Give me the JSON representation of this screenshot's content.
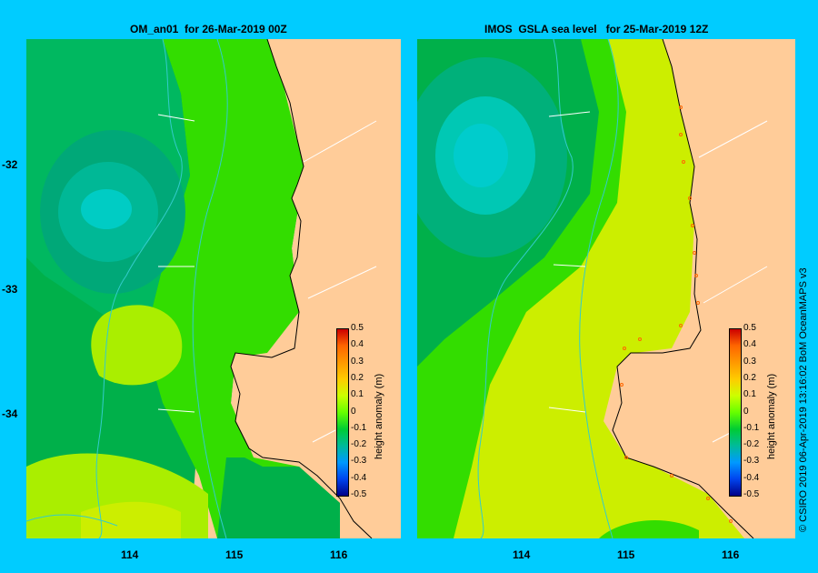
{
  "left_panel": {
    "title": "OM_an01  for 26-Mar-2019 00Z"
  },
  "right_panel": {
    "title": "IMOS  GSLA sea level   for 25-Mar-2019 12Z"
  },
  "y_ticks": [
    "-32",
    "-33",
    "-34"
  ],
  "x_ticks_left": [
    "114",
    "115",
    "116"
  ],
  "x_ticks_right": [
    "114",
    "115",
    "116"
  ],
  "colorbar": {
    "title": "height anomaly (m)",
    "labels": [
      "0.5",
      "0.4",
      "0.3",
      "0.2",
      "0.1",
      "0",
      "-0.1",
      "-0.2",
      "-0.3",
      "-0.4",
      "-0.5"
    ],
    "colors": [
      "#cc0000",
      "#ff6600",
      "#ff9900",
      "#ffcc00",
      "#ccff00",
      "#66ff00",
      "#00cc33",
      "#00bb99",
      "#0099ff",
      "#0044ee",
      "#000088"
    ]
  },
  "credit": "© CSIRO 2019   06-Apr-2019 13:16:02 BoM OceanMAPS v3",
  "palette": {
    "land": "#ffcc99",
    "background": "#00ccff",
    "dark_green": "#00b04a",
    "mid_green": "#00c838",
    "green": "#33dd00",
    "lime": "#99ee00",
    "yellow_green": "#ccee00",
    "teal": "#00b07a",
    "cyan": "#00cccc"
  }
}
